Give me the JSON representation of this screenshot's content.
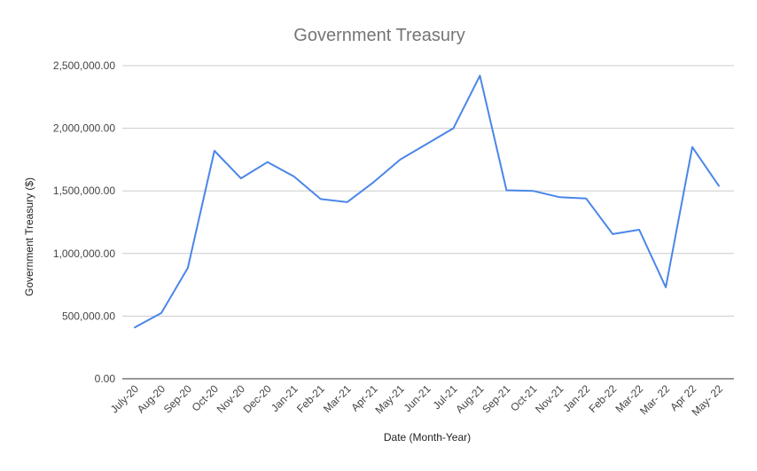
{
  "chart_data": {
    "type": "line",
    "title": "Government Treasury",
    "xlabel": "Date (Month-Year)",
    "ylabel": "Government Treasury ($)",
    "ylim": [
      0,
      2500000
    ],
    "yticks": [
      0,
      500000,
      1000000,
      1500000,
      2000000,
      2500000
    ],
    "ytick_labels": [
      "0.00",
      "500,000.00",
      "1,000,000.00",
      "1,500,000.00",
      "2,000,000.00",
      "2,500,000.00"
    ],
    "grid": true,
    "line_color": "#4a86e8",
    "categories": [
      "July-20",
      "Aug-20",
      "Sep-20",
      "Oct-20",
      "Nov-20",
      "Dec-20",
      "Jan-21",
      "Feb-21",
      "Mar-21",
      "Apr-21",
      "May-21",
      "Jun-21",
      "Jul-21",
      "Aug-21",
      "Sep-21",
      "Oct-21",
      "Nov-21",
      "Jan-22",
      "Feb-22",
      "Mar-22",
      "Mar- 22",
      "Apr 22",
      "May- 22"
    ],
    "values": [
      410000,
      525000,
      885000,
      1820000,
      1600000,
      1730000,
      1615000,
      1435000,
      1410000,
      1570000,
      1750000,
      1875000,
      2000000,
      2420000,
      1505000,
      1500000,
      1450000,
      1440000,
      1155000,
      1190000,
      730000,
      1850000,
      1540000
    ]
  }
}
